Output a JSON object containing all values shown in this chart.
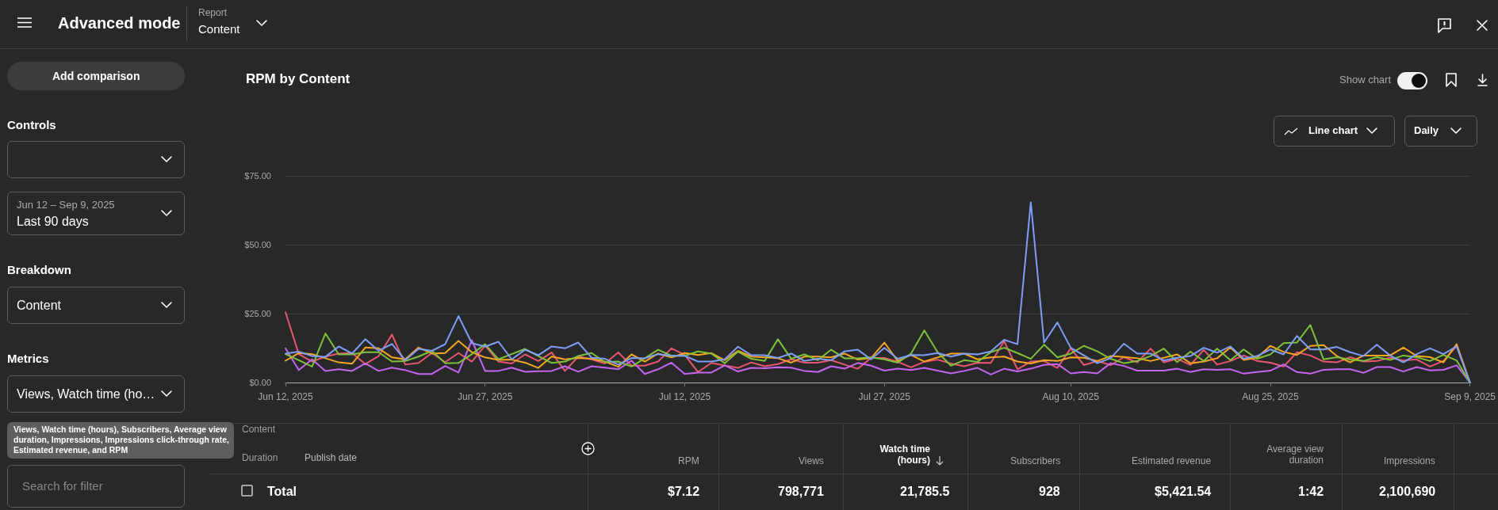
{
  "chart_data": [
    {
      "type": "line",
      "title": "RPM by Content",
      "x": [
        "2025-06-12",
        "2025-06-13",
        "2025-06-14",
        "2025-06-15",
        "2025-06-16",
        "2025-06-17",
        "2025-06-18",
        "2025-06-19",
        "2025-06-20",
        "2025-06-21",
        "2025-06-22",
        "2025-06-23",
        "2025-06-24",
        "2025-06-25",
        "2025-06-26",
        "2025-06-27",
        "2025-06-28",
        "2025-06-29",
        "2025-06-30",
        "2025-07-01",
        "2025-07-02",
        "2025-07-03",
        "2025-07-04",
        "2025-07-05",
        "2025-07-06",
        "2025-07-07",
        "2025-07-08",
        "2025-07-09",
        "2025-07-10",
        "2025-07-11",
        "2025-07-12",
        "2025-07-13",
        "2025-07-14",
        "2025-07-15",
        "2025-07-16",
        "2025-07-17",
        "2025-07-18",
        "2025-07-19",
        "2025-07-20",
        "2025-07-21",
        "2025-07-22",
        "2025-07-23",
        "2025-07-24",
        "2025-07-25",
        "2025-07-26",
        "2025-07-27",
        "2025-07-28",
        "2025-07-29",
        "2025-07-30",
        "2025-07-31",
        "2025-08-01",
        "2025-08-02",
        "2025-08-03",
        "2025-08-04",
        "2025-08-05",
        "2025-08-06",
        "2025-08-07",
        "2025-08-08",
        "2025-08-09",
        "2025-08-10",
        "2025-08-11",
        "2025-08-12",
        "2025-08-13",
        "2025-08-14",
        "2025-08-15",
        "2025-08-16",
        "2025-08-17",
        "2025-08-18",
        "2025-08-19",
        "2025-08-20",
        "2025-08-21",
        "2025-08-22",
        "2025-08-23",
        "2025-08-24",
        "2025-08-25",
        "2025-08-26",
        "2025-08-27",
        "2025-08-28",
        "2025-08-29",
        "2025-08-30",
        "2025-08-31",
        "2025-09-01",
        "2025-09-02",
        "2025-09-03",
        "2025-09-04",
        "2025-09-05",
        "2025-09-06",
        "2025-09-07",
        "2025-09-08",
        "2025-09-09"
      ],
      "xlim": [
        "2025-06-12",
        "2025-09-09"
      ],
      "xticks": [
        {
          "value": "2025-06-12",
          "label": "Jun 12, 2025"
        },
        {
          "value": "2025-06-27",
          "label": "Jun 27, 2025"
        },
        {
          "value": "2025-07-12",
          "label": "Jul 12, 2025"
        },
        {
          "value": "2025-07-27",
          "label": "Jul 27, 2025"
        },
        {
          "value": "2025-08-10",
          "label": "Aug 10, 2025"
        },
        {
          "value": "2025-08-25",
          "label": "Aug 25, 2025"
        },
        {
          "value": "2025-09-09",
          "label": "Sep 9, 2025"
        }
      ],
      "ylim": [
        0,
        75
      ],
      "yticks": [
        {
          "value": 0,
          "label": "$0.00"
        },
        {
          "value": 25,
          "label": "$25.00"
        },
        {
          "value": 50,
          "label": "$50.00"
        },
        {
          "value": 75,
          "label": "$75.00"
        }
      ],
      "grid": "y",
      "series": [
        {
          "color": "#e8566f",
          "values": [
            25.5,
            10.3,
            7.6,
            9.4,
            10.5,
            10.7,
            6.7,
            9.6,
            17.4,
            6.5,
            7.1,
            10.7,
            7.4,
            10.7,
            7.6,
            13.4,
            7.6,
            6.9,
            10.2,
            7.8,
            10.9,
            4.2,
            9.4,
            8.4,
            6.9,
            10.9,
            6.1,
            6.1,
            7.6,
            12.4,
            10.0,
            3.8,
            7.1,
            6.2,
            5.3,
            7.3,
            5.9,
            6.7,
            8.4,
            7.2,
            7.2,
            8.1,
            6.5,
            5.0,
            8.9,
            8.9,
            7.5,
            5.5,
            7.5,
            8.3,
            6.9,
            5.9,
            7.2,
            7.1,
            15.0,
            4.8,
            7.6,
            7.8,
            5.3,
            12.4,
            6.3,
            7.8,
            6.3,
            9.2,
            7.3,
            12.3,
            7.3,
            8.6,
            6.4,
            11.8,
            6.5,
            7.8,
            9.8,
            7.8,
            7.2,
            5.8,
            11.0,
            9.8,
            7.6,
            7.3,
            9.2,
            7.6,
            7.8,
            9.0,
            8.0,
            8.4,
            5.8,
            7.8,
            13.3,
            0
          ]
        },
        {
          "color": "#c466f2",
          "values": [
            12.4,
            4.5,
            8.4,
            4.2,
            4.8,
            4.2,
            6.9,
            4.2,
            5.4,
            4.5,
            3.1,
            3.1,
            6.0,
            3.6,
            15.3,
            4.2,
            4.2,
            5.4,
            3.9,
            4.1,
            4.2,
            5.9,
            3.9,
            5.9,
            5.4,
            4.8,
            7.9,
            3.1,
            4.8,
            7.2,
            3.1,
            3.6,
            3.6,
            6.2,
            4.0,
            5.3,
            5.2,
            5.5,
            5.4,
            4.2,
            3.8,
            5.9,
            5.0,
            7.1,
            6.1,
            4.3,
            5.0,
            4.5,
            5.3,
            4.3,
            3.3,
            4.2,
            5.3,
            2.9,
            5.0,
            4.0,
            5.0,
            6.4,
            6.7,
            3.3,
            3.8,
            3.3,
            7.0,
            6.0,
            4.3,
            4.3,
            4.3,
            5.0,
            3.8,
            4.8,
            4.6,
            4.8,
            3.2,
            3.8,
            4.3,
            6.6,
            3.8,
            3.2,
            4.6,
            4.8,
            4.8,
            3.5,
            5.6,
            5.6,
            4.0,
            5.6,
            4.4,
            4.6,
            6.2,
            0
          ]
        },
        {
          "color": "#f5a623",
          "values": [
            7.9,
            10.7,
            10.3,
            8.8,
            7.3,
            6.8,
            12.7,
            12.4,
            9.1,
            8.4,
            12.7,
            10.5,
            10.7,
            15.1,
            11.0,
            9.1,
            8.2,
            8.3,
            7.2,
            5.3,
            9.4,
            8.4,
            8.9,
            8.6,
            7.6,
            5.7,
            10.2,
            7.6,
            10.5,
            9.1,
            10.7,
            10.0,
            10.7,
            8.1,
            11.5,
            9.4,
            9.1,
            8.8,
            7.2,
            9.4,
            9.4,
            9.1,
            10.5,
            8.3,
            8.9,
            14.5,
            7.8,
            10.0,
            7.6,
            9.1,
            10.5,
            10.5,
            8.4,
            9.1,
            9.4,
            7.6,
            6.9,
            8.1,
            7.8,
            9.1,
            9.0,
            7.8,
            9.6,
            9.3,
            8.8,
            7.8,
            9.0,
            10.2,
            7.0,
            7.6,
            8.8,
            12.7,
            8.2,
            9.0,
            13.3,
            11.1,
            10.0,
            13.3,
            13.6,
            9.6,
            7.3,
            9.8,
            9.8,
            9.8,
            12.7,
            9.6,
            9.2,
            7.3,
            13.9,
            0
          ]
        },
        {
          "color": "#7ec13b",
          "values": [
            10.3,
            8.1,
            5.8,
            17.8,
            10.2,
            10.2,
            11.0,
            11.0,
            7.6,
            7.8,
            9.4,
            11.5,
            7.0,
            7.1,
            10.3,
            13.9,
            8.4,
            10.3,
            12.2,
            9.6,
            7.1,
            7.6,
            9.6,
            10.7,
            7.4,
            7.6,
            5.8,
            8.8,
            11.9,
            9.7,
            9.7,
            11.3,
            10.5,
            7.0,
            11.2,
            8.6,
            7.8,
            15.7,
            8.6,
            10.2,
            8.1,
            11.9,
            8.8,
            8.8,
            9.1,
            8.4,
            7.2,
            10.5,
            18.9,
            11.0,
            6.1,
            8.1,
            7.5,
            11.0,
            12.6,
            10.7,
            8.6,
            13.7,
            9.1,
            10.5,
            13.3,
            11.3,
            8.6,
            7.0,
            7.8,
            9.6,
            12.3,
            7.4,
            11.2,
            7.8,
            12.3,
            8.1,
            12.0,
            8.6,
            10.2,
            14.3,
            14.5,
            20.9,
            8.4,
            9.2,
            8.3,
            7.8,
            9.2,
            8.2,
            9.8,
            9.2,
            7.8,
            10.0,
            8.0,
            0
          ]
        },
        {
          "color": "#7f9ef8",
          "values": [
            10.5,
            11.2,
            9.6,
            9.3,
            13.1,
            10.5,
            15.7,
            11.5,
            14.0,
            8.1,
            12.2,
            11.5,
            13.9,
            24.1,
            14.3,
            13.0,
            14.8,
            8.4,
            11.9,
            9.9,
            13.1,
            12.4,
            14.5,
            9.0,
            8.6,
            6.5,
            8.9,
            8.8,
            10.3,
            9.7,
            9.7,
            7.6,
            7.6,
            8.4,
            13.0,
            9.9,
            9.9,
            8.9,
            10.5,
            7.8,
            8.6,
            8.1,
            11.3,
            11.9,
            8.4,
            12.6,
            8.6,
            10.0,
            9.9,
            10.7,
            9.4,
            10.5,
            10.2,
            11.3,
            15.5,
            13.9,
            65.4,
            14.5,
            21.8,
            12.6,
            9.8,
            7.0,
            8.8,
            14.1,
            10.5,
            10.5,
            8.0,
            9.0,
            9.6,
            12.6,
            10.8,
            13.1,
            8.6,
            9.6,
            12.0,
            10.2,
            16.9,
            12.0,
            12.0,
            12.9,
            11.0,
            9.6,
            13.7,
            9.8,
            7.3,
            10.3,
            12.4,
            10.3,
            13.1,
            0
          ]
        }
      ]
    },
    {
      "type": "other",
      "annotations": [
        "Advanced mode",
        "Report",
        "Content",
        "Add comparison",
        "Controls",
        "Jun 12 – Sep 9, 2025",
        "Last 90 days",
        "Breakdown",
        "Content",
        "Metrics",
        "Views, Watch time (ho…",
        "Views, Watch time (hours), Subscribers, Average view duration, Impressions, Impressions click-through rate, Estimated revenue, and RPM",
        "Search for filter",
        "Show chart",
        "Line chart",
        "Daily",
        "Content",
        "Duration",
        "Publish date",
        "RPM",
        "Views",
        "Watch time (hours)",
        "Subscribers",
        "Estimated revenue",
        "Average view duration",
        "Impressions",
        "Total",
        "$7.12",
        "798,771",
        "21,785.5",
        "928",
        "$5,421.54",
        "1:42",
        "2,100,690"
      ]
    }
  ]
}
